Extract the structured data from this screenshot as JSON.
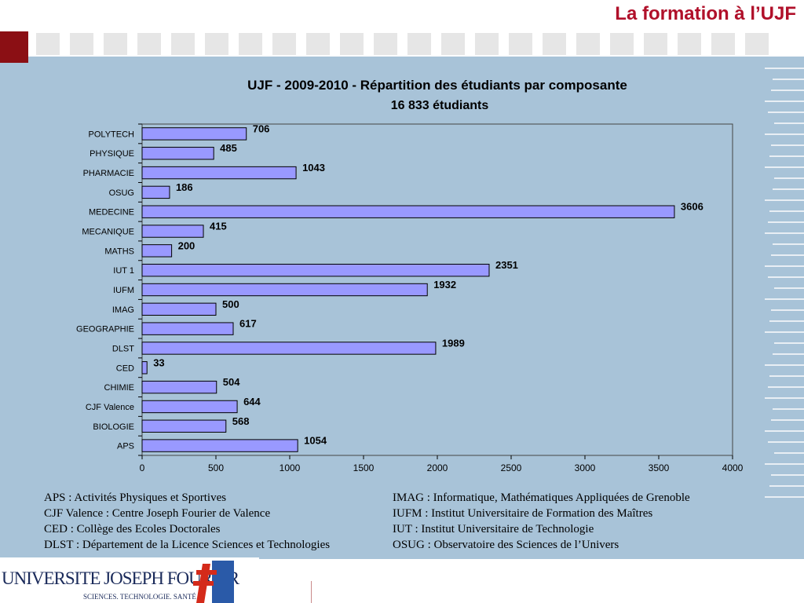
{
  "header": {
    "title": "La formation à l’UJF"
  },
  "colors": {
    "accent": "#b0102a",
    "panel": "#a8c3d8",
    "bar": "#9999ff",
    "bar_border": "#000000"
  },
  "chart_data": {
    "type": "bar",
    "orientation": "horizontal",
    "title": "UJF - 2009-2010 - Répartition des étudiants par composante",
    "subtitle": "16 833 étudiants",
    "categories": [
      "POLYTECH",
      "PHYSIQUE",
      "PHARMACIE",
      "OSUG",
      "MEDECINE",
      "MECANIQUE",
      "MATHS",
      "IUT 1",
      "IUFM",
      "IMAG",
      "GEOGRAPHIE",
      "DLST",
      "CED",
      "CHIMIE",
      "CJF Valence",
      "BIOLOGIE",
      "APS"
    ],
    "values": [
      706,
      485,
      1043,
      186,
      3606,
      415,
      200,
      2351,
      1932,
      500,
      617,
      1989,
      33,
      504,
      644,
      568,
      1054
    ],
    "xlim": [
      0,
      4000
    ],
    "xticks": [
      "0",
      "500",
      "1000",
      "1500",
      "2000",
      "2500",
      "3000",
      "3500",
      "4000"
    ],
    "grid": false,
    "legend": "none"
  },
  "legend": {
    "left": [
      "APS : Activités Physiques et Sportives",
      "CJF Valence : Centre Joseph Fourier de Valence",
      "CED : Collège des Ecoles Doctorales",
      "DLST : Département de la Licence Sciences et Technologies"
    ],
    "right": [
      "IMAG : Informatique, Mathématiques Appliquées de Grenoble",
      "IUFM : Institut Universitaire de Formation des Maîtres",
      "IUT : Institut Universitaire de Technologie",
      "OSUG : Observatoire des Sciences de l’Univers"
    ]
  },
  "logo": {
    "name": "UNIVERSITE JOSEPH FOURIER",
    "tagline": "SCIENCES. TECHNOLOGIE. SANTÉ"
  }
}
